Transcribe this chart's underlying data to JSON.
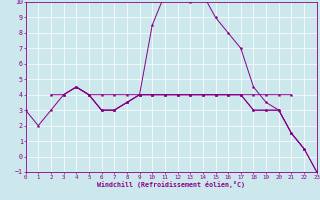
{
  "xlabel": "Windchill (Refroidissement éolien,°C)",
  "xlim": [
    0,
    23
  ],
  "ylim": [
    -1,
    10
  ],
  "xticks": [
    0,
    1,
    2,
    3,
    4,
    5,
    6,
    7,
    8,
    9,
    10,
    11,
    12,
    13,
    14,
    15,
    16,
    17,
    18,
    19,
    20,
    21,
    22,
    23
  ],
  "yticks": [
    -1,
    0,
    1,
    2,
    3,
    4,
    5,
    6,
    7,
    8,
    9,
    10
  ],
  "bg_color": "#cce8ec",
  "line_color": "#880088",
  "lines": [
    {
      "x": [
        0,
        1,
        2,
        3,
        4,
        5,
        6,
        7,
        8,
        9,
        10,
        11,
        12,
        13,
        14,
        15,
        16,
        17,
        18,
        19,
        20,
        21,
        22,
        23
      ],
      "y": [
        3.0,
        2.0,
        3.0,
        4.0,
        4.5,
        4.0,
        3.0,
        3.0,
        3.5,
        4.0,
        8.5,
        10.5,
        10.5,
        10.0,
        10.5,
        9.0,
        8.0,
        7.0,
        4.5,
        3.5,
        3.0,
        1.5,
        0.5,
        -1.0
      ]
    },
    {
      "x": [
        2,
        3,
        4,
        5,
        6,
        7,
        8,
        9,
        10,
        11,
        12,
        13,
        14,
        15,
        16,
        17,
        18,
        19,
        20,
        21
      ],
      "y": [
        4.0,
        4.0,
        4.5,
        4.0,
        4.0,
        4.0,
        4.0,
        4.0,
        4.0,
        4.0,
        4.0,
        4.0,
        4.0,
        4.0,
        4.0,
        4.0,
        4.0,
        4.0,
        4.0,
        4.0
      ]
    },
    {
      "x": [
        3,
        4,
        5,
        6,
        7,
        8,
        9,
        10,
        11,
        12,
        13,
        14,
        15,
        16,
        17,
        18,
        19,
        20,
        21,
        22
      ],
      "y": [
        4.0,
        4.5,
        4.0,
        3.0,
        3.0,
        3.5,
        4.0,
        4.0,
        4.0,
        4.0,
        4.0,
        4.0,
        4.0,
        4.0,
        4.0,
        3.0,
        3.0,
        3.0,
        1.5,
        0.5
      ]
    },
    {
      "x": [
        4,
        5,
        6,
        7,
        8,
        9,
        10,
        11,
        12,
        13,
        14,
        15,
        16,
        17,
        18,
        19,
        20,
        21,
        22,
        23
      ],
      "y": [
        4.5,
        4.0,
        3.0,
        3.0,
        3.5,
        4.0,
        4.0,
        4.0,
        4.0,
        4.0,
        4.0,
        4.0,
        4.0,
        4.0,
        3.0,
        3.0,
        3.0,
        1.5,
        0.5,
        -1.0
      ]
    }
  ]
}
